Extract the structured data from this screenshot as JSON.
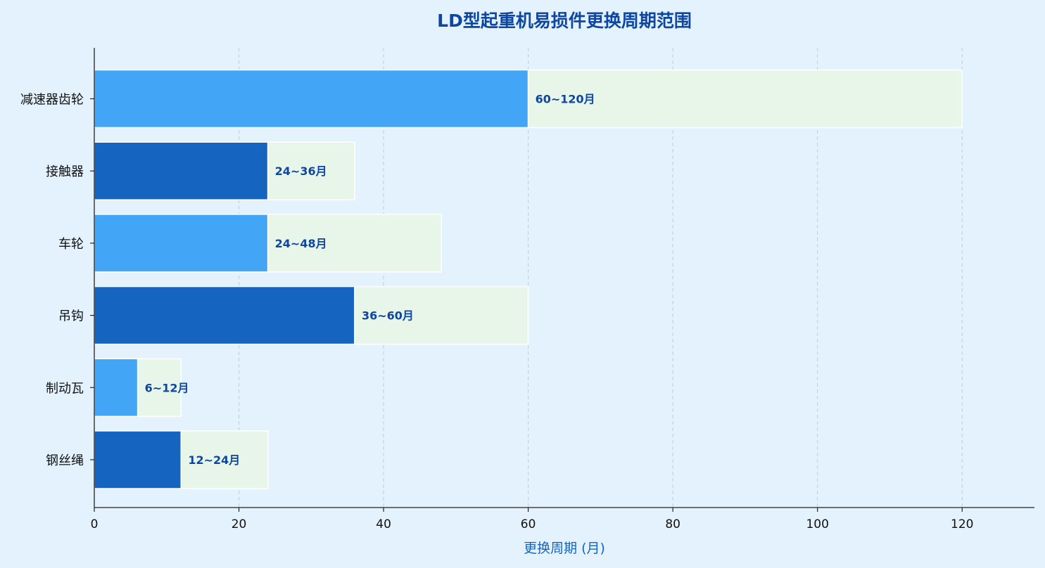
{
  "chart_data": {
    "type": "bar",
    "orientation": "horizontal",
    "title": "LD型起重机易损件更换周期范围",
    "xlabel": "更换周期 (月)",
    "ylabel": "",
    "xlim": [
      0,
      130
    ],
    "xticks": [
      0,
      20,
      40,
      60,
      80,
      100,
      120
    ],
    "grid": "x-dashed",
    "categories": [
      "钢丝绳",
      "制动瓦",
      "吊钩",
      "车轮",
      "接触器",
      "减速器齿轮"
    ],
    "min_values": [
      12,
      6,
      36,
      24,
      24,
      60
    ],
    "max_values": [
      24,
      12,
      60,
      48,
      36,
      120
    ],
    "data_labels": [
      "12~24月",
      "6~12月",
      "36~60月",
      "24~48月",
      "24~36月",
      "60~120月"
    ],
    "colors": {
      "bar_dark": "#1565c0",
      "bar_light": "#42a5f5",
      "range_fill": "#e8f5e9",
      "bar_edge": "#ffffff",
      "label": "#0d47a1",
      "background": "#e3f2fd",
      "grid": "#b0bec5"
    }
  }
}
